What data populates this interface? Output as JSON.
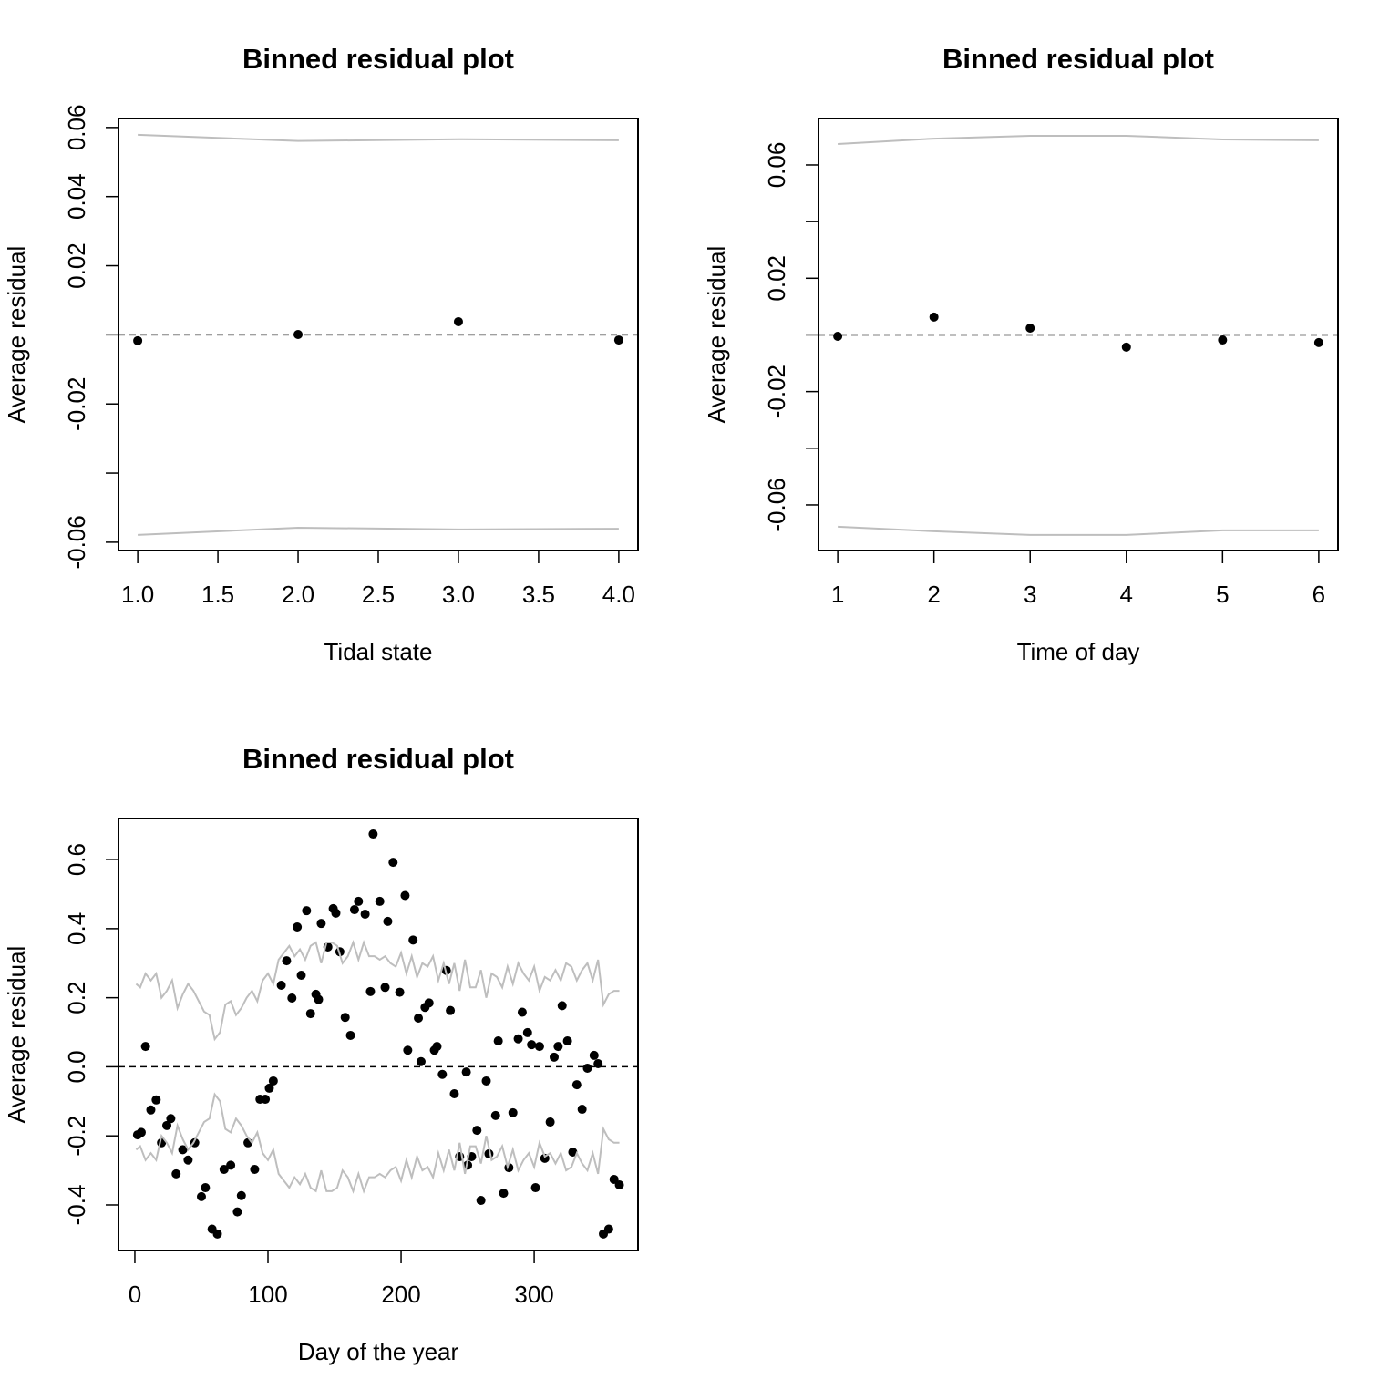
{
  "chart_data": [
    {
      "type": "scatter",
      "title": "Binned residual plot",
      "x_label": "Tidal state",
      "y_label": "Average residual",
      "xlim": [
        0.88,
        4.12
      ],
      "ylim": [
        -0.0624,
        0.0626
      ],
      "xticks": [
        {
          "value": 1,
          "label": "1.0"
        },
        1.5,
        {
          "value": 2,
          "label": "2.0"
        },
        2.5,
        {
          "value": 3,
          "label": "3.0"
        },
        3.5,
        {
          "value": 4,
          "label": "4.0"
        }
      ],
      "yticks": [
        -0.06,
        {
          "value": -0.04,
          "label": null
        },
        -0.02,
        {
          "value": 0,
          "label": null
        },
        0.02,
        0.04,
        0.06
      ],
      "hline": 0,
      "series": [
        {
          "style": "points",
          "color": "#000000",
          "x": [
            1,
            2,
            3,
            4
          ],
          "values": [
            -0.0017,
            0.0001,
            0.0038,
            -0.0015
          ]
        },
        {
          "style": "line",
          "color": "#bebebe",
          "x": [
            1,
            2,
            3,
            4
          ],
          "values": [
            0.0579,
            0.0561,
            0.0566,
            0.0563
          ]
        },
        {
          "style": "line",
          "color": "#bebebe",
          "x": [
            1,
            2,
            3,
            4
          ],
          "values": [
            -0.0579,
            -0.0558,
            -0.0563,
            -0.0561
          ]
        }
      ]
    },
    {
      "type": "scatter",
      "title": "Binned residual plot",
      "x_label": "Time of day",
      "y_label": "Average residual",
      "xlim": [
        0.8,
        6.2
      ],
      "ylim": [
        -0.0761,
        0.0764
      ],
      "xticks": [
        1,
        2,
        3,
        4,
        5,
        6
      ],
      "yticks": [
        -0.06,
        {
          "value": -0.04,
          "label": null
        },
        -0.02,
        {
          "value": 0,
          "label": null
        },
        0.02,
        {
          "value": 0.04,
          "label": null
        },
        0.06
      ],
      "hline": 0,
      "series": [
        {
          "style": "points",
          "color": "#000000",
          "x": [
            1,
            2,
            3,
            4,
            5,
            6
          ],
          "values": [
            -0.0005,
            0.0063,
            0.0024,
            -0.0043,
            -0.0018,
            -0.0027
          ]
        },
        {
          "style": "line",
          "color": "#bebebe",
          "x": [
            1,
            2,
            3,
            4,
            5,
            6
          ],
          "values": [
            0.0674,
            0.0693,
            0.0703,
            0.0703,
            0.069,
            0.0687
          ]
        },
        {
          "style": "line",
          "color": "#bebebe",
          "x": [
            1,
            2,
            3,
            4,
            5,
            6
          ],
          "values": [
            -0.0677,
            -0.0693,
            -0.0706,
            -0.0706,
            -0.069,
            -0.069
          ]
        }
      ]
    },
    {
      "type": "scatter",
      "title": "Binned residual plot",
      "x_label": "Day of the year",
      "y_label": "Average residual",
      "xlim": [
        -12.3,
        378
      ],
      "ylim": [
        -0.532,
        0.719
      ],
      "xticks": [
        0,
        100,
        200,
        300
      ],
      "yticks": [
        -0.4,
        -0.2,
        {
          "value": 0,
          "label": "0.0"
        },
        0.2,
        0.4,
        0.6
      ],
      "hline": 0,
      "series": [
        {
          "style": "points",
          "color": "#000000",
          "x": [
            2,
            4.8,
            8,
            12,
            16,
            20,
            24,
            27,
            31,
            36,
            40,
            45,
            50,
            53,
            58,
            62,
            67,
            72,
            77,
            80,
            85,
            90,
            94,
            98,
            101,
            104,
            110,
            114,
            118,
            122,
            125,
            129,
            132,
            136,
            138,
            140,
            145,
            149,
            151,
            154,
            158,
            162,
            165,
            168,
            173,
            177,
            179,
            184,
            188,
            190,
            194,
            199,
            203,
            205,
            209,
            213,
            215,
            218,
            221,
            225,
            227,
            231,
            234,
            237,
            240,
            244,
            249,
            250,
            253,
            257,
            260,
            264,
            266,
            271,
            273,
            277,
            281,
            284,
            288,
            291,
            295,
            298,
            301,
            304,
            308,
            312,
            315,
            318,
            321,
            325,
            329,
            332,
            336,
            340,
            345,
            348,
            352,
            356,
            360,
            364
          ],
          "values": [
            -0.197,
            -0.19,
            0.059,
            -0.125,
            -0.096,
            -0.22,
            -0.17,
            -0.15,
            -0.31,
            -0.24,
            -0.27,
            -0.22,
            -0.376,
            -0.35,
            -0.47,
            -0.484,
            -0.297,
            -0.285,
            -0.42,
            -0.373,
            -0.22,
            -0.297,
            -0.094,
            -0.094,
            -0.062,
            -0.041,
            0.236,
            0.307,
            0.199,
            0.405,
            0.265,
            0.452,
            0.154,
            0.21,
            0.195,
            0.415,
            0.347,
            0.458,
            0.445,
            0.333,
            0.143,
            0.091,
            0.455,
            0.479,
            0.442,
            0.218,
            0.674,
            0.479,
            0.23,
            0.421,
            0.592,
            0.216,
            0.496,
            0.048,
            0.367,
            0.141,
            0.015,
            0.172,
            0.185,
            0.048,
            0.059,
            -0.022,
            0.279,
            0.163,
            -0.078,
            -0.26,
            -0.015,
            -0.285,
            -0.26,
            -0.184,
            -0.387,
            -0.041,
            -0.252,
            -0.141,
            0.075,
            -0.366,
            -0.292,
            -0.133,
            0.081,
            0.158,
            0.099,
            0.064,
            -0.35,
            0.059,
            -0.265,
            -0.16,
            0.028,
            0.059,
            0.177,
            0.075,
            -0.247,
            -0.052,
            -0.123,
            -0.004,
            0.033,
            0.009,
            -0.484,
            -0.47,
            -0.326,
            -0.342
          ]
        },
        {
          "style": "line",
          "color": "#bebebe",
          "x": [
            1,
            4,
            8,
            12,
            16,
            20,
            24,
            28,
            32,
            36,
            40,
            44,
            48,
            52,
            56,
            60,
            64,
            68,
            72,
            76,
            80,
            84,
            88,
            92,
            96,
            100,
            104,
            108,
            112,
            116,
            120,
            124,
            128,
            132,
            136,
            140,
            144,
            148,
            152,
            156,
            160,
            164,
            168,
            172,
            176,
            180,
            184,
            188,
            192,
            196,
            200,
            204,
            208,
            212,
            216,
            220,
            224,
            228,
            232,
            236,
            240,
            244,
            248,
            252,
            256,
            260,
            264,
            268,
            272,
            276,
            280,
            284,
            288,
            292,
            296,
            300,
            304,
            308,
            312,
            316,
            320,
            324,
            328,
            332,
            336,
            340,
            344,
            348,
            352,
            356,
            360,
            364
          ],
          "values": [
            0.24,
            0.23,
            0.27,
            0.25,
            0.27,
            0.2,
            0.22,
            0.25,
            0.17,
            0.21,
            0.24,
            0.22,
            0.19,
            0.16,
            0.15,
            0.08,
            0.1,
            0.18,
            0.19,
            0.15,
            0.17,
            0.2,
            0.22,
            0.19,
            0.25,
            0.27,
            0.24,
            0.31,
            0.33,
            0.35,
            0.32,
            0.34,
            0.31,
            0.35,
            0.36,
            0.3,
            0.36,
            0.36,
            0.35,
            0.3,
            0.32,
            0.36,
            0.31,
            0.36,
            0.32,
            0.32,
            0.31,
            0.32,
            0.3,
            0.29,
            0.33,
            0.27,
            0.32,
            0.26,
            0.3,
            0.29,
            0.32,
            0.25,
            0.3,
            0.24,
            0.3,
            0.22,
            0.31,
            0.23,
            0.23,
            0.28,
            0.2,
            0.27,
            0.26,
            0.23,
            0.29,
            0.24,
            0.3,
            0.27,
            0.25,
            0.29,
            0.22,
            0.26,
            0.25,
            0.28,
            0.25,
            0.3,
            0.29,
            0.25,
            0.28,
            0.3,
            0.25,
            0.31,
            0.18,
            0.21,
            0.22,
            0.22
          ]
        },
        {
          "style": "line",
          "color": "#bebebe",
          "x": [
            1,
            4,
            8,
            12,
            16,
            20,
            24,
            28,
            32,
            36,
            40,
            44,
            48,
            52,
            56,
            60,
            64,
            68,
            72,
            76,
            80,
            84,
            88,
            92,
            96,
            100,
            104,
            108,
            112,
            116,
            120,
            124,
            128,
            132,
            136,
            140,
            144,
            148,
            152,
            156,
            160,
            164,
            168,
            172,
            176,
            180,
            184,
            188,
            192,
            196,
            200,
            204,
            208,
            212,
            216,
            220,
            224,
            228,
            232,
            236,
            240,
            244,
            248,
            252,
            256,
            260,
            264,
            268,
            272,
            276,
            280,
            284,
            288,
            292,
            296,
            300,
            304,
            308,
            312,
            316,
            320,
            324,
            328,
            332,
            336,
            340,
            344,
            348,
            352,
            356,
            360,
            364
          ],
          "values": [
            -0.24,
            -0.23,
            -0.27,
            -0.25,
            -0.27,
            -0.2,
            -0.22,
            -0.25,
            -0.17,
            -0.21,
            -0.24,
            -0.22,
            -0.19,
            -0.16,
            -0.15,
            -0.08,
            -0.1,
            -0.18,
            -0.19,
            -0.15,
            -0.17,
            -0.2,
            -0.22,
            -0.19,
            -0.25,
            -0.27,
            -0.24,
            -0.31,
            -0.33,
            -0.35,
            -0.32,
            -0.34,
            -0.31,
            -0.35,
            -0.36,
            -0.3,
            -0.36,
            -0.36,
            -0.35,
            -0.3,
            -0.32,
            -0.36,
            -0.31,
            -0.36,
            -0.32,
            -0.32,
            -0.31,
            -0.32,
            -0.3,
            -0.29,
            -0.33,
            -0.27,
            -0.32,
            -0.26,
            -0.3,
            -0.29,
            -0.32,
            -0.25,
            -0.3,
            -0.24,
            -0.3,
            -0.22,
            -0.31,
            -0.23,
            -0.23,
            -0.28,
            -0.2,
            -0.27,
            -0.26,
            -0.23,
            -0.29,
            -0.24,
            -0.3,
            -0.27,
            -0.25,
            -0.29,
            -0.22,
            -0.26,
            -0.25,
            -0.28,
            -0.25,
            -0.3,
            -0.29,
            -0.25,
            -0.28,
            -0.3,
            -0.25,
            -0.31,
            -0.18,
            -0.21,
            -0.22,
            -0.22
          ]
        }
      ]
    }
  ]
}
